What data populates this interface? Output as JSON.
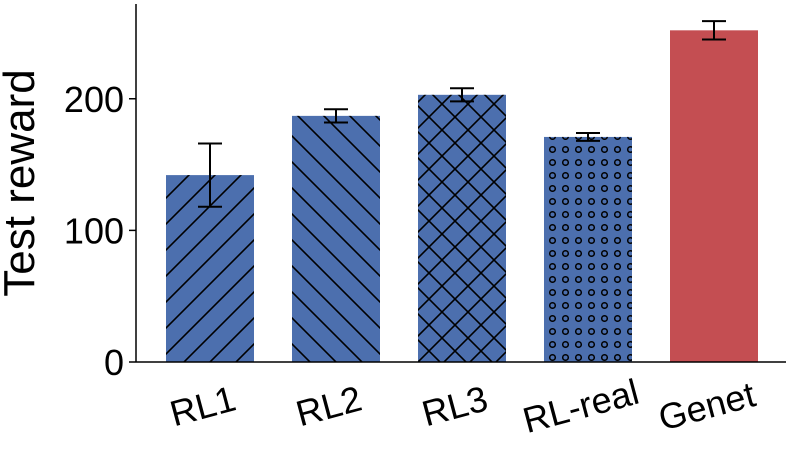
{
  "chart_data": {
    "type": "bar",
    "categories": [
      "RL1",
      "RL2",
      "RL3",
      "RL-real",
      "Genet"
    ],
    "values": [
      142,
      187,
      203,
      171,
      252
    ],
    "errors": [
      24,
      5,
      5,
      3,
      7
    ],
    "patterns": [
      "diag-up",
      "diag-down",
      "crosshatch",
      "dots",
      "none"
    ],
    "colors": [
      "#4c6fae",
      "#4c6fae",
      "#4c6fae",
      "#4c6fae",
      "#c44e52"
    ],
    "title": "",
    "xlabel": "",
    "ylabel": "Test reward",
    "yticks": [
      0,
      100,
      200
    ],
    "ylim": [
      0,
      272
    ],
    "grid": false,
    "legend": "none"
  }
}
